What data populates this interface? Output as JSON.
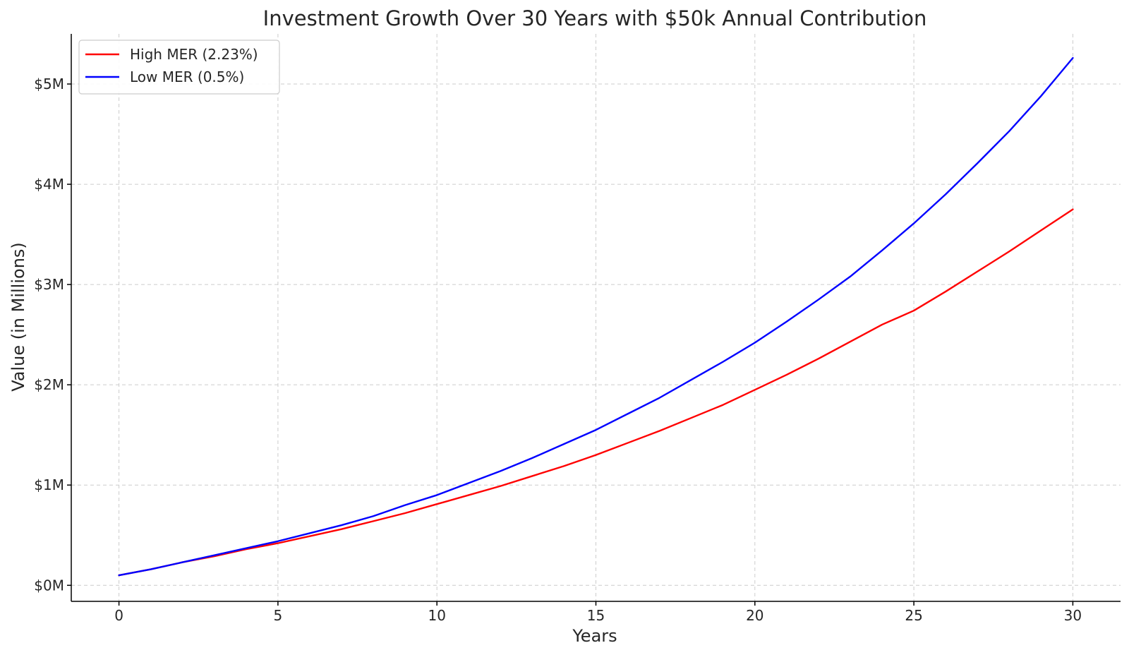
{
  "chart_data": {
    "type": "line",
    "title": "Investment Growth Over 30 Years with $50k Annual Contribution",
    "xlabel": "Years",
    "ylabel": "Value (in Millions)",
    "xlim": [
      -1.5,
      31.5
    ],
    "ylim": [
      -0.16,
      5.5
    ],
    "grid": true,
    "legend_position": "top-left",
    "x_ticks": [
      0,
      5,
      10,
      15,
      20,
      25,
      30
    ],
    "x_tick_labels": [
      "0",
      "5",
      "10",
      "15",
      "20",
      "25",
      "30"
    ],
    "y_ticks": [
      0,
      1,
      2,
      3,
      4,
      5
    ],
    "y_tick_labels": [
      "$0M",
      "$1M",
      "$2M",
      "$3M",
      "$4M",
      "$5M"
    ],
    "x": [
      0,
      1,
      2,
      3,
      4,
      5,
      6,
      7,
      8,
      9,
      10,
      11,
      12,
      13,
      14,
      15,
      16,
      17,
      18,
      19,
      20,
      21,
      22,
      23,
      24,
      25,
      26,
      27,
      28,
      29,
      30
    ],
    "series": [
      {
        "name": "High MER (2.23%)",
        "color": "#ff0000",
        "values": [
          0.1,
          0.16,
          0.23,
          0.29,
          0.36,
          0.42,
          0.49,
          0.56,
          0.64,
          0.72,
          0.81,
          0.9,
          0.99,
          1.09,
          1.19,
          1.3,
          1.42,
          1.54,
          1.67,
          1.8,
          1.95,
          2.1,
          2.26,
          2.43,
          2.6,
          2.74,
          2.93,
          3.13,
          3.33,
          3.54,
          3.75
        ]
      },
      {
        "name": "Low MER (0.5%)",
        "color": "#0000ff",
        "values": [
          0.1,
          0.16,
          0.23,
          0.3,
          0.37,
          0.44,
          0.52,
          0.6,
          0.69,
          0.8,
          0.9,
          1.02,
          1.14,
          1.27,
          1.41,
          1.55,
          1.71,
          1.87,
          2.05,
          2.23,
          2.42,
          2.63,
          2.85,
          3.08,
          3.34,
          3.61,
          3.9,
          4.21,
          4.53,
          4.88,
          5.26
        ]
      }
    ]
  }
}
